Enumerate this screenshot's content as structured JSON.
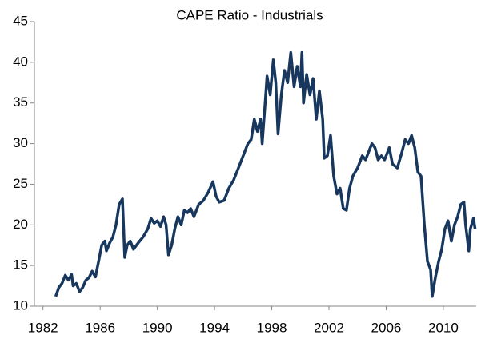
{
  "chart_data": {
    "type": "line",
    "title": "CAPE Ratio - Industrials",
    "x": [
      1982.89,
      1983.11,
      1983.33,
      1983.56,
      1983.78,
      1984.0,
      1984.11,
      1984.33,
      1984.56,
      1984.78,
      1985.0,
      1985.22,
      1985.44,
      1985.67,
      1985.89,
      1986.11,
      1986.33,
      1986.44,
      1986.67,
      1986.89,
      1987.11,
      1987.33,
      1987.56,
      1987.72,
      1987.89,
      1988.11,
      1988.33,
      1988.67,
      1989.0,
      1989.33,
      1989.56,
      1989.78,
      1990.0,
      1990.22,
      1990.44,
      1990.61,
      1990.78,
      1991.0,
      1991.22,
      1991.44,
      1991.67,
      1991.89,
      1992.11,
      1992.33,
      1992.56,
      1992.89,
      1993.22,
      1993.56,
      1993.89,
      1994.11,
      1994.33,
      1994.67,
      1995.0,
      1995.33,
      1995.67,
      1996.0,
      1996.33,
      1996.56,
      1996.78,
      1997.0,
      1997.22,
      1997.33,
      1997.56,
      1997.67,
      1997.89,
      1998.11,
      1998.28,
      1998.44,
      1998.67,
      1998.89,
      1999.11,
      1999.33,
      1999.56,
      1999.78,
      2000.0,
      2000.11,
      2000.22,
      2000.44,
      2000.67,
      2000.89,
      2001.11,
      2001.33,
      2001.56,
      2001.67,
      2001.89,
      2002.11,
      2002.33,
      2002.56,
      2002.78,
      2003.0,
      2003.22,
      2003.44,
      2003.67,
      2004.0,
      2004.33,
      2004.56,
      2004.78,
      2005.0,
      2005.22,
      2005.44,
      2005.67,
      2005.89,
      2006.22,
      2006.44,
      2006.78,
      2007.11,
      2007.33,
      2007.56,
      2007.78,
      2008.0,
      2008.22,
      2008.44,
      2008.67,
      2008.89,
      2009.11,
      2009.22,
      2009.44,
      2009.67,
      2009.89,
      2010.11,
      2010.33,
      2010.56,
      2010.78,
      2011.0,
      2011.22,
      2011.44,
      2011.56,
      2011.78,
      2011.89,
      2012.11,
      2012.22
    ],
    "values": [
      11.2,
      12.3,
      12.8,
      13.8,
      13.2,
      13.9,
      12.5,
      12.8,
      11.8,
      12.3,
      13.2,
      13.5,
      14.3,
      13.6,
      15.5,
      17.5,
      18.0,
      16.8,
      17.8,
      18.5,
      20.0,
      22.5,
      23.2,
      16.0,
      17.5,
      18.0,
      17.0,
      17.8,
      18.5,
      19.5,
      20.8,
      20.2,
      20.5,
      19.8,
      21.0,
      20.0,
      16.3,
      17.5,
      19.5,
      21.0,
      20.0,
      21.8,
      21.5,
      22.0,
      21.0,
      22.5,
      23.0,
      24.0,
      25.3,
      23.5,
      22.8,
      23.0,
      24.5,
      25.5,
      27.0,
      28.5,
      30.0,
      30.5,
      33.0,
      31.5,
      33.0,
      30.0,
      35.5,
      38.3,
      36.0,
      40.3,
      37.5,
      31.2,
      36.0,
      39.0,
      37.5,
      41.2,
      37.0,
      39.5,
      37.0,
      41.2,
      35.0,
      38.5,
      36.0,
      38.0,
      33.0,
      36.5,
      33.0,
      28.2,
      28.5,
      31.0,
      26.0,
      23.8,
      24.5,
      22.0,
      21.8,
      24.5,
      26.0,
      27.0,
      28.5,
      28.0,
      29.0,
      30.0,
      29.5,
      28.0,
      28.5,
      28.0,
      29.5,
      27.5,
      27.0,
      29.0,
      30.5,
      30.0,
      31.0,
      29.5,
      26.5,
      26.0,
      20.0,
      15.5,
      14.5,
      11.2,
      13.5,
      15.5,
      17.0,
      19.5,
      20.5,
      18.0,
      20.0,
      21.0,
      22.5,
      22.8,
      20.0,
      16.8,
      19.5,
      20.8,
      19.5
    ],
    "color": "#17375e",
    "xlim": [
      1981.4,
      2012.3
    ],
    "xticks": [
      1982,
      1986,
      1990,
      1994,
      1998,
      2002,
      2006,
      2010
    ],
    "ylim": [
      10,
      45
    ],
    "yticks": [
      10,
      15,
      20,
      25,
      30,
      35,
      40,
      45
    ],
    "grid": false
  }
}
